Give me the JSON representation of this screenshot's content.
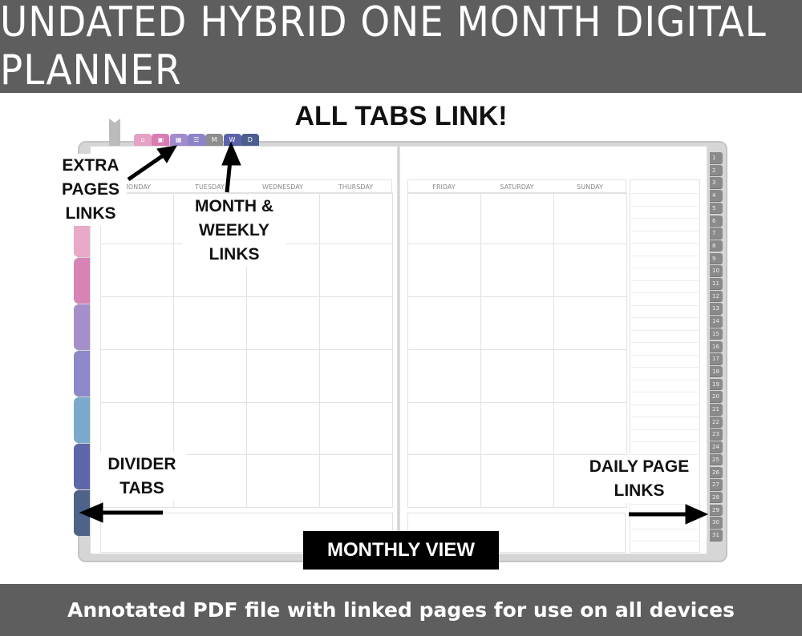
{
  "title": "UNDATED HYBRID ONE MONTH DIGITAL PLANNER",
  "subtitle": "ALL TABS LINK!",
  "footer": "Annotated PDF file with linked pages for use on all devices",
  "view_label": "MONTHLY VIEW",
  "annotations": {
    "extra": "EXTRA PAGES LINKS",
    "month_weekly": "MONTH & WEEKLY LINKS",
    "divider": "DIVIDER TABS",
    "daily": "DAILY PAGE LINKS"
  },
  "top_tabs": [
    {
      "icon": "home-icon",
      "label": "",
      "color": "#e7a1c4"
    },
    {
      "icon": "calendar-icon",
      "label": "",
      "color": "#d97cb3"
    },
    {
      "icon": "grid-icon",
      "label": "",
      "color": "#a28bcc"
    },
    {
      "icon": "list-icon",
      "label": "",
      "color": "#8b84c8"
    },
    {
      "icon": "",
      "label": "M",
      "color": "#8d8d8d"
    },
    {
      "icon": "",
      "label": "W",
      "color": "#5a62a8"
    },
    {
      "icon": "",
      "label": "D",
      "color": "#4c5f8c"
    }
  ],
  "divider_colors": [
    "#eab1cc",
    "#e9a9c8",
    "#d883b6",
    "#a48fcb",
    "#8c88c9",
    "#7aaacb",
    "#5c66a8",
    "#4f6289"
  ],
  "days_left": [
    "MONDAY",
    "TUESDAY",
    "WEDNESDAY",
    "THURSDAY"
  ],
  "days_right": [
    "FRIDAY",
    "SATURDAY",
    "SUNDAY"
  ],
  "daily_links": [
    "1",
    "2",
    "3",
    "4",
    "5",
    "6",
    "7",
    "8",
    "9",
    "10",
    "11",
    "12",
    "13",
    "14",
    "15",
    "16",
    "17",
    "18",
    "19",
    "20",
    "21",
    "22",
    "23",
    "24",
    "25",
    "26",
    "27",
    "28",
    "29",
    "30",
    "31"
  ]
}
